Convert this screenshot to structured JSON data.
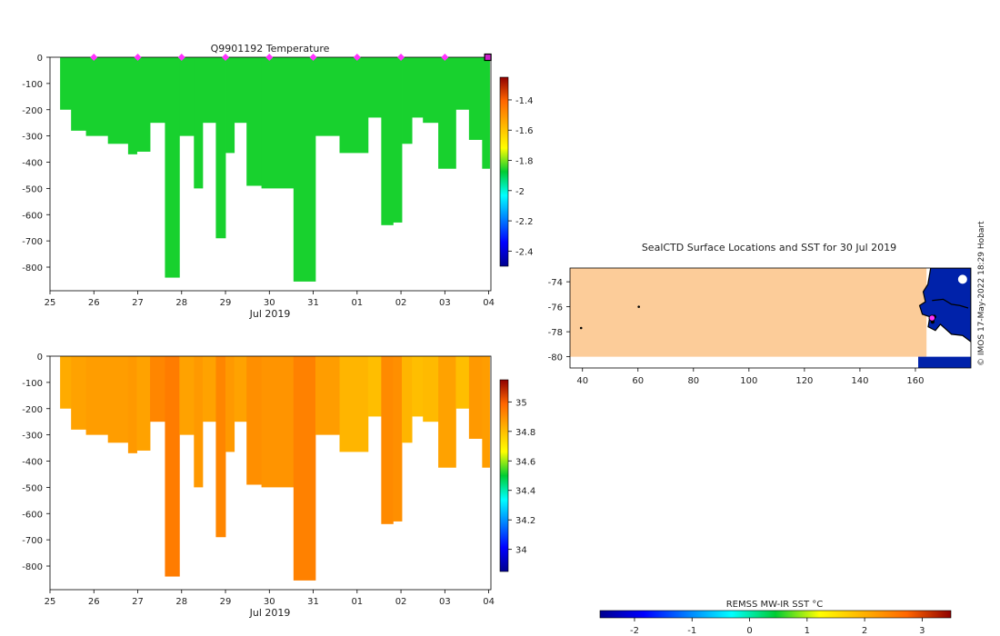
{
  "credit": "© IMOS 17-May-2022 18:29 Hobart",
  "chart_data": [
    {
      "type": "heatmap",
      "id": "temp",
      "title": "Q9901192  Temperature",
      "xlabel": "Jul 2019",
      "x_ticks": [
        "25",
        "26",
        "27",
        "28",
        "29",
        "30",
        "31",
        "01",
        "02",
        "03",
        "04"
      ],
      "x_range": [
        25,
        35.05
      ],
      "ylabel": "",
      "y_ticks": [
        0,
        -100,
        -200,
        -300,
        -400,
        -500,
        -600,
        -700,
        -800
      ],
      "ylim": [
        -890,
        0
      ],
      "colorbar": {
        "ticks": [
          -1.4,
          -1.6,
          -1.8,
          -2,
          -2.2,
          -2.4
        ],
        "range": [
          -2.5,
          -1.25
        ]
      },
      "surface_markers_day": [
        26,
        27,
        28,
        29,
        30,
        31,
        32,
        33,
        34
      ],
      "last_marker_day": 34.98,
      "profiles": [
        {
          "x0": 25.23,
          "x1": 25.48,
          "depth": 200,
          "value": -1.86
        },
        {
          "x0": 25.48,
          "x1": 25.82,
          "depth": 280,
          "value": -1.86
        },
        {
          "x0": 25.82,
          "x1": 26.32,
          "depth": 300,
          "value": -1.86
        },
        {
          "x0": 26.32,
          "x1": 26.78,
          "depth": 330,
          "value": -1.86
        },
        {
          "x0": 26.78,
          "x1": 26.98,
          "depth": 370,
          "value": -1.86
        },
        {
          "x0": 26.98,
          "x1": 27.28,
          "depth": 360,
          "value": -1.86
        },
        {
          "x0": 27.28,
          "x1": 27.62,
          "depth": 250,
          "value": -1.86
        },
        {
          "x0": 27.62,
          "x1": 27.95,
          "depth": 840,
          "value": -1.86
        },
        {
          "x0": 27.95,
          "x1": 28.28,
          "depth": 300,
          "value": -1.86
        },
        {
          "x0": 28.28,
          "x1": 28.48,
          "depth": 500,
          "value": -1.86
        },
        {
          "x0": 28.48,
          "x1": 28.78,
          "depth": 250,
          "value": -1.86
        },
        {
          "x0": 28.78,
          "x1": 29.0,
          "depth": 690,
          "value": -1.86
        },
        {
          "x0": 29.0,
          "x1": 29.2,
          "depth": 365,
          "value": -1.86
        },
        {
          "x0": 29.2,
          "x1": 29.48,
          "depth": 250,
          "value": -1.86
        },
        {
          "x0": 29.48,
          "x1": 29.82,
          "depth": 490,
          "value": -1.86
        },
        {
          "x0": 29.82,
          "x1": 30.55,
          "depth": 500,
          "value": -1.86
        },
        {
          "x0": 30.55,
          "x1": 31.05,
          "depth": 855,
          "value": -1.86
        },
        {
          "x0": 31.05,
          "x1": 31.6,
          "depth": 300,
          "value": -1.86
        },
        {
          "x0": 31.6,
          "x1": 32.25,
          "depth": 365,
          "value": -1.86
        },
        {
          "x0": 32.25,
          "x1": 32.55,
          "depth": 230,
          "value": -1.86
        },
        {
          "x0": 32.55,
          "x1": 32.82,
          "depth": 640,
          "value": -1.86
        },
        {
          "x0": 32.82,
          "x1": 33.02,
          "depth": 630,
          "value": -1.86
        },
        {
          "x0": 33.02,
          "x1": 33.25,
          "depth": 330,
          "value": -1.86
        },
        {
          "x0": 33.25,
          "x1": 33.5,
          "depth": 230,
          "value": -1.86
        },
        {
          "x0": 33.5,
          "x1": 33.85,
          "depth": 250,
          "value": -1.86
        },
        {
          "x0": 33.85,
          "x1": 34.25,
          "depth": 425,
          "value": -1.86
        },
        {
          "x0": 34.25,
          "x1": 34.55,
          "depth": 200,
          "value": -1.86
        },
        {
          "x0": 34.55,
          "x1": 34.85,
          "depth": 315,
          "value": -1.86
        },
        {
          "x0": 34.85,
          "x1": 35.02,
          "depth": 425,
          "value": -1.86
        }
      ]
    },
    {
      "type": "heatmap",
      "id": "sal",
      "title": "",
      "xlabel": "Jul 2019",
      "x_ticks": [
        "25",
        "26",
        "27",
        "28",
        "29",
        "30",
        "31",
        "01",
        "02",
        "03",
        "04"
      ],
      "x_range": [
        25,
        35.05
      ],
      "ylabel": "",
      "y_ticks": [
        0,
        -100,
        -200,
        -300,
        -400,
        -500,
        -600,
        -700,
        -800
      ],
      "ylim": [
        -890,
        0
      ],
      "colorbar": {
        "ticks": [
          35,
          34.8,
          34.6,
          34.4,
          34.2,
          34
        ],
        "range": [
          33.85,
          35.15
        ]
      },
      "profiles": [
        {
          "x0": 25.23,
          "x1": 25.48,
          "depth": 200,
          "value": 34.84
        },
        {
          "x0": 25.48,
          "x1": 25.82,
          "depth": 280,
          "value": 34.86
        },
        {
          "x0": 25.82,
          "x1": 26.32,
          "depth": 300,
          "value": 34.87
        },
        {
          "x0": 26.32,
          "x1": 26.78,
          "depth": 330,
          "value": 34.87
        },
        {
          "x0": 26.78,
          "x1": 26.98,
          "depth": 370,
          "value": 34.88
        },
        {
          "x0": 26.98,
          "x1": 27.28,
          "depth": 360,
          "value": 34.86
        },
        {
          "x0": 27.28,
          "x1": 27.62,
          "depth": 250,
          "value": 34.92
        },
        {
          "x0": 27.62,
          "x1": 27.95,
          "depth": 840,
          "value": 34.94
        },
        {
          "x0": 27.95,
          "x1": 28.28,
          "depth": 300,
          "value": 34.86
        },
        {
          "x0": 28.28,
          "x1": 28.48,
          "depth": 500,
          "value": 34.88
        },
        {
          "x0": 28.48,
          "x1": 28.78,
          "depth": 250,
          "value": 34.86
        },
        {
          "x0": 28.78,
          "x1": 29.0,
          "depth": 690,
          "value": 34.92
        },
        {
          "x0": 29.0,
          "x1": 29.2,
          "depth": 365,
          "value": 34.88
        },
        {
          "x0": 29.2,
          "x1": 29.48,
          "depth": 250,
          "value": 34.86
        },
        {
          "x0": 29.48,
          "x1": 29.82,
          "depth": 490,
          "value": 34.9
        },
        {
          "x0": 29.82,
          "x1": 30.55,
          "depth": 500,
          "value": 34.89
        },
        {
          "x0": 30.55,
          "x1": 31.05,
          "depth": 855,
          "value": 34.93
        },
        {
          "x0": 31.05,
          "x1": 31.6,
          "depth": 300,
          "value": 34.87
        },
        {
          "x0": 31.6,
          "x1": 32.25,
          "depth": 365,
          "value": 34.82
        },
        {
          "x0": 32.25,
          "x1": 32.55,
          "depth": 230,
          "value": 34.8
        },
        {
          "x0": 32.55,
          "x1": 32.82,
          "depth": 640,
          "value": 34.91
        },
        {
          "x0": 32.82,
          "x1": 33.02,
          "depth": 630,
          "value": 34.9
        },
        {
          "x0": 33.02,
          "x1": 33.25,
          "depth": 330,
          "value": 34.82
        },
        {
          "x0": 33.25,
          "x1": 33.5,
          "depth": 230,
          "value": 34.8
        },
        {
          "x0": 33.5,
          "x1": 33.85,
          "depth": 250,
          "value": 34.81
        },
        {
          "x0": 33.85,
          "x1": 34.25,
          "depth": 425,
          "value": 34.86
        },
        {
          "x0": 34.25,
          "x1": 34.55,
          "depth": 200,
          "value": 34.8
        },
        {
          "x0": 34.55,
          "x1": 34.85,
          "depth": 315,
          "value": 34.88
        },
        {
          "x0": 34.85,
          "x1": 35.02,
          "depth": 425,
          "value": 34.87
        }
      ]
    },
    {
      "type": "map",
      "id": "map",
      "title": "SealCTD Surface Locations and SST for 30 Jul 2019",
      "x_ticks": [
        40,
        60,
        80,
        100,
        120,
        140,
        160
      ],
      "xlim": [
        35.5,
        180
      ],
      "y_ticks": [
        -74,
        -76,
        -78,
        -80
      ],
      "ylim": [
        -80.9,
        -72.9
      ],
      "sst_band_lat": [
        -80,
        -72.9
      ],
      "land_from_lon": 164,
      "stray_points": [
        [
          60.3,
          -76.0
        ],
        [
          39.5,
          -77.7
        ]
      ],
      "seal_positions": [
        [
          165.5,
          -76.9
        ],
        [
          166.2,
          -77.2
        ],
        [
          166.8,
          -76.8
        ]
      ],
      "current_position": [
        166.0,
        -76.9
      ],
      "colorbar_label": "REMSS MW-IR SST °C",
      "colorbar_ticks": [
        -2,
        -1,
        0,
        1,
        2,
        3
      ],
      "colorbar_range": [
        -2.6,
        3.5
      ]
    }
  ]
}
